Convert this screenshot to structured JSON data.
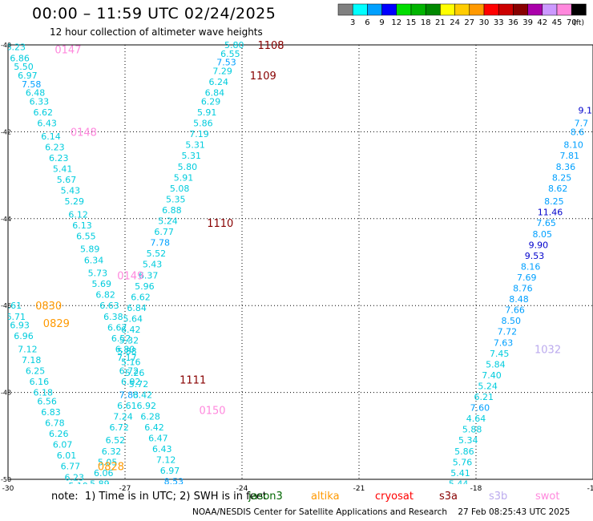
{
  "header": {
    "title": "00:00 – 11:59 UTC 02/24/2025",
    "subtitle": "12 hour collection of altimeter wave heights"
  },
  "legend": {
    "unit": "(ft)",
    "bins": [
      {
        "color": "#808080",
        "label": "3"
      },
      {
        "color": "#00ffff",
        "label": "6"
      },
      {
        "color": "#00a0ff",
        "label": "9"
      },
      {
        "color": "#0000ff",
        "label": "12"
      },
      {
        "color": "#00dd00",
        "label": "15"
      },
      {
        "color": "#00b400",
        "label": "18"
      },
      {
        "color": "#008800",
        "label": "21"
      },
      {
        "color": "#ffff00",
        "label": "24"
      },
      {
        "color": "#ffcc00",
        "label": "27"
      },
      {
        "color": "#ff9900",
        "label": "30"
      },
      {
        "color": "#ff0000",
        "label": "33"
      },
      {
        "color": "#cc0000",
        "label": "36"
      },
      {
        "color": "#880000",
        "label": "39"
      },
      {
        "color": "#aa00aa",
        "label": "42"
      },
      {
        "color": "#cc99ff",
        "label": "45"
      },
      {
        "color": "#ff88dd",
        "label": "70"
      },
      {
        "color": "#000000",
        "label": ""
      }
    ]
  },
  "footer": {
    "note": "note:  1) Time is in UTC; 2) SWH is in feet",
    "credit": "NOAA/NESDIS Center for Satellite Applications and Research    27 Feb 08:25:43 UTC 2025",
    "satellites": [
      {
        "name": "jason3",
        "color": "#006600"
      },
      {
        "name": "altika",
        "color": "#ff9900"
      },
      {
        "name": "cryosat",
        "color": "#ff0000"
      },
      {
        "name": "s3a",
        "color": "#880000"
      },
      {
        "name": "s3b",
        "color": "#bbaaee"
      },
      {
        "name": "swot",
        "color": "#ff88dd"
      }
    ]
  },
  "chart_data": {
    "type": "scatter",
    "xlim": [
      -30,
      -15
    ],
    "ylim": [
      -50,
      -40
    ],
    "xticks": [
      "-30",
      "-27",
      "-24",
      "-21",
      "-18",
      "-15"
    ],
    "yticks": [
      "-40",
      "-42",
      "-44",
      "-46",
      "-48",
      "-50"
    ],
    "grid": true,
    "time_labels": [
      {
        "text": "0147",
        "x": -28.8,
        "y": -40.1,
        "color": "#ff88dd"
      },
      {
        "text": "0148",
        "x": -28.4,
        "y": -42.0,
        "color": "#ff88dd"
      },
      {
        "text": "0149",
        "x": -27.2,
        "y": -45.3,
        "color": "#ff88dd"
      },
      {
        "text": "0150",
        "x": -25.1,
        "y": -48.4,
        "color": "#ff88dd"
      },
      {
        "text": "0830",
        "x": -29.3,
        "y": -46.0,
        "color": "#ff9900"
      },
      {
        "text": "0829",
        "x": -29.1,
        "y": -46.4,
        "color": "#ff9900"
      },
      {
        "text": "0828",
        "x": -27.7,
        "y": -49.7,
        "color": "#ff9900"
      },
      {
        "text": "1108",
        "x": -23.6,
        "y": -40.0,
        "color": "#880000"
      },
      {
        "text": "1109",
        "x": -23.8,
        "y": -40.7,
        "color": "#880000"
      },
      {
        "text": "1110",
        "x": -24.9,
        "y": -44.1,
        "color": "#880000"
      },
      {
        "text": "1111",
        "x": -25.6,
        "y": -47.7,
        "color": "#880000"
      },
      {
        "text": "1032",
        "x": -16.5,
        "y": -47.0,
        "color": "#bbaaee"
      }
    ],
    "series": [
      {
        "name": "swot",
        "points": [
          {
            "x": -29.8,
            "y": -40.05,
            "v": "6.23"
          },
          {
            "x": -29.7,
            "y": -40.3,
            "v": "6.86"
          },
          {
            "x": -29.6,
            "y": -40.5,
            "v": "5.50"
          },
          {
            "x": -29.5,
            "y": -40.7,
            "v": "6.97"
          },
          {
            "x": -29.4,
            "y": -40.9,
            "v": "7.58"
          },
          {
            "x": -29.3,
            "y": -41.1,
            "v": "6.48"
          },
          {
            "x": -29.2,
            "y": -41.3,
            "v": "6.33"
          },
          {
            "x": -29.1,
            "y": -41.55,
            "v": "6.62"
          },
          {
            "x": -29.0,
            "y": -41.8,
            "v": "6.43"
          },
          {
            "x": -28.9,
            "y": -42.1,
            "v": "6.14"
          },
          {
            "x": -28.8,
            "y": -42.35,
            "v": "6.23"
          },
          {
            "x": -28.7,
            "y": -42.6,
            "v": "6.23"
          },
          {
            "x": -28.6,
            "y": -42.85,
            "v": "5.41"
          },
          {
            "x": -28.5,
            "y": -43.1,
            "v": "5.67"
          },
          {
            "x": -28.4,
            "y": -43.35,
            "v": "5.43"
          },
          {
            "x": -28.3,
            "y": -43.6,
            "v": "5.29"
          },
          {
            "x": -28.2,
            "y": -43.9,
            "v": "6.12"
          },
          {
            "x": -28.1,
            "y": -44.15,
            "v": "6.13"
          },
          {
            "x": -28.0,
            "y": -44.4,
            "v": "6.55"
          },
          {
            "x": -27.9,
            "y": -44.7,
            "v": "5.89"
          },
          {
            "x": -27.8,
            "y": -44.95,
            "v": "6.34"
          },
          {
            "x": -27.7,
            "y": -45.25,
            "v": "5.73"
          },
          {
            "x": -27.6,
            "y": -45.5,
            "v": "5.69"
          },
          {
            "x": -27.5,
            "y": -45.75,
            "v": "6.82"
          },
          {
            "x": -27.4,
            "y": -46.0,
            "v": "6.63"
          },
          {
            "x": -27.3,
            "y": -46.25,
            "v": "6.38"
          },
          {
            "x": -27.2,
            "y": -46.5,
            "v": "6.67"
          },
          {
            "x": -27.1,
            "y": -46.75,
            "v": "6.52"
          },
          {
            "x": -27.0,
            "y": -47.0,
            "v": "6.80"
          },
          {
            "x": -26.95,
            "y": -47.2,
            "v": "7.17"
          },
          {
            "x": -26.9,
            "y": -47.5,
            "v": "6.72"
          },
          {
            "x": -26.85,
            "y": -47.75,
            "v": "6.92"
          },
          {
            "x": -26.9,
            "y": -48.05,
            "v": "7.83"
          },
          {
            "x": -26.95,
            "y": -48.3,
            "v": "6.61"
          },
          {
            "x": -27.05,
            "y": -48.55,
            "v": "7.24"
          },
          {
            "x": -27.15,
            "y": -48.8,
            "v": "6.72"
          },
          {
            "x": -27.25,
            "y": -49.1,
            "v": "6.52"
          },
          {
            "x": -27.35,
            "y": -49.35,
            "v": "6.32"
          },
          {
            "x": -27.45,
            "y": -49.6,
            "v": "5.05"
          },
          {
            "x": -27.55,
            "y": -49.85,
            "v": "6.06"
          },
          {
            "x": -27.65,
            "y": -50.1,
            "v": "5.89"
          }
        ]
      },
      {
        "name": "altika",
        "points": [
          {
            "x": -29.9,
            "y": -46.0,
            "v": "6.61"
          },
          {
            "x": -29.8,
            "y": -46.25,
            "v": "6.71"
          },
          {
            "x": -29.7,
            "y": -46.45,
            "v": "6.93"
          },
          {
            "x": -29.6,
            "y": -46.7,
            "v": "6.96"
          },
          {
            "x": -29.5,
            "y": -47.0,
            "v": "7.12"
          },
          {
            "x": -29.4,
            "y": -47.25,
            "v": "7.18"
          },
          {
            "x": -29.3,
            "y": -47.5,
            "v": "6.25"
          },
          {
            "x": -29.2,
            "y": -47.75,
            "v": "6.16"
          },
          {
            "x": -29.1,
            "y": -48.0,
            "v": "6.18"
          },
          {
            "x": -29.0,
            "y": -48.2,
            "v": "6.56"
          },
          {
            "x": -28.9,
            "y": -48.45,
            "v": "6.83"
          },
          {
            "x": -28.8,
            "y": -48.7,
            "v": "6.78"
          },
          {
            "x": -28.7,
            "y": -48.95,
            "v": "6.26"
          },
          {
            "x": -28.6,
            "y": -49.2,
            "v": "6.07"
          },
          {
            "x": -28.5,
            "y": -49.45,
            "v": "6.01"
          },
          {
            "x": -28.4,
            "y": -49.7,
            "v": "6.77"
          },
          {
            "x": -28.3,
            "y": -49.95,
            "v": "6.23"
          },
          {
            "x": -28.2,
            "y": -50.15,
            "v": "5.19"
          }
        ]
      },
      {
        "name": "s3a",
        "points": [
          {
            "x": -24.2,
            "y": -40.0,
            "v": "5.80"
          },
          {
            "x": -24.3,
            "y": -40.2,
            "v": "6.55"
          },
          {
            "x": -24.4,
            "y": -40.4,
            "v": "7.53"
          },
          {
            "x": -24.5,
            "y": -40.6,
            "v": "7.29"
          },
          {
            "x": -24.6,
            "y": -40.85,
            "v": "6.24"
          },
          {
            "x": -24.7,
            "y": -41.1,
            "v": "6.84"
          },
          {
            "x": -24.8,
            "y": -41.3,
            "v": "6.29"
          },
          {
            "x": -24.9,
            "y": -41.55,
            "v": "5.91"
          },
          {
            "x": -25.0,
            "y": -41.8,
            "v": "5.86"
          },
          {
            "x": -25.1,
            "y": -42.05,
            "v": "7.19"
          },
          {
            "x": -25.2,
            "y": -42.3,
            "v": "5.31"
          },
          {
            "x": -25.3,
            "y": -42.55,
            "v": "5.31"
          },
          {
            "x": -25.4,
            "y": -42.8,
            "v": "5.80"
          },
          {
            "x": -25.5,
            "y": -43.05,
            "v": "5.91"
          },
          {
            "x": -25.6,
            "y": -43.3,
            "v": "5.08"
          },
          {
            "x": -25.7,
            "y": -43.55,
            "v": "5.35"
          },
          {
            "x": -25.8,
            "y": -43.8,
            "v": "6.88"
          },
          {
            "x": -25.9,
            "y": -44.05,
            "v": "5.24"
          },
          {
            "x": -26.0,
            "y": -44.3,
            "v": "6.77"
          },
          {
            "x": -26.1,
            "y": -44.55,
            "v": "7.78"
          },
          {
            "x": -26.2,
            "y": -44.8,
            "v": "5.52"
          },
          {
            "x": -26.3,
            "y": -45.05,
            "v": "5.43"
          },
          {
            "x": -26.4,
            "y": -45.3,
            "v": "6.37"
          },
          {
            "x": -26.5,
            "y": -45.55,
            "v": "5.96"
          },
          {
            "x": -26.6,
            "y": -45.8,
            "v": "6.62"
          },
          {
            "x": -26.7,
            "y": -46.05,
            "v": "6.84"
          },
          {
            "x": -26.8,
            "y": -46.3,
            "v": "5.64"
          },
          {
            "x": -26.85,
            "y": -46.55,
            "v": "6.42"
          },
          {
            "x": -26.9,
            "y": -46.8,
            "v": "5.32"
          },
          {
            "x": -26.95,
            "y": -47.05,
            "v": "5.88"
          },
          {
            "x": -26.85,
            "y": -47.3,
            "v": "5.16"
          },
          {
            "x": -26.75,
            "y": -47.55,
            "v": "5.26"
          },
          {
            "x": -26.65,
            "y": -47.8,
            "v": "5.72"
          },
          {
            "x": -26.55,
            "y": -48.05,
            "v": "6.42"
          },
          {
            "x": -26.45,
            "y": -48.3,
            "v": "6.92"
          },
          {
            "x": -26.35,
            "y": -48.55,
            "v": "6.28"
          },
          {
            "x": -26.25,
            "y": -48.8,
            "v": "6.42"
          },
          {
            "x": -26.15,
            "y": -49.05,
            "v": "6.47"
          },
          {
            "x": -26.05,
            "y": -49.3,
            "v": "6.43"
          },
          {
            "x": -25.95,
            "y": -49.55,
            "v": "7.12"
          },
          {
            "x": -25.85,
            "y": -49.8,
            "v": "6.97"
          },
          {
            "x": -25.75,
            "y": -50.05,
            "v": "8.53"
          },
          {
            "x": -25.65,
            "y": -50.3,
            "v": "7.59"
          }
        ]
      },
      {
        "name": "s3b",
        "points": [
          {
            "x": -15.2,
            "y": -41.5,
            "v": "9.1"
          },
          {
            "x": -15.3,
            "y": -41.8,
            "v": "7.7"
          },
          {
            "x": -15.4,
            "y": -42.0,
            "v": "8.6"
          },
          {
            "x": -15.5,
            "y": -42.3,
            "v": "8.10"
          },
          {
            "x": -15.6,
            "y": -42.55,
            "v": "7.81"
          },
          {
            "x": -15.7,
            "y": -42.8,
            "v": "8.36"
          },
          {
            "x": -15.8,
            "y": -43.05,
            "v": "8.25"
          },
          {
            "x": -15.9,
            "y": -43.3,
            "v": "8.62"
          },
          {
            "x": -16.0,
            "y": -43.6,
            "v": "8.25"
          },
          {
            "x": -16.1,
            "y": -43.85,
            "v": "11.46"
          },
          {
            "x": -16.2,
            "y": -44.1,
            "v": "7.65"
          },
          {
            "x": -16.3,
            "y": -44.35,
            "v": "8.05"
          },
          {
            "x": -16.4,
            "y": -44.6,
            "v": "9.90"
          },
          {
            "x": -16.5,
            "y": -44.85,
            "v": "9.53"
          },
          {
            "x": -16.6,
            "y": -45.1,
            "v": "8.16"
          },
          {
            "x": -16.7,
            "y": -45.35,
            "v": "7.69"
          },
          {
            "x": -16.8,
            "y": -45.6,
            "v": "8.76"
          },
          {
            "x": -16.9,
            "y": -45.85,
            "v": "8.48"
          },
          {
            "x": -17.0,
            "y": -46.1,
            "v": "7.66"
          },
          {
            "x": -17.1,
            "y": -46.35,
            "v": "8.50"
          },
          {
            "x": -17.2,
            "y": -46.6,
            "v": "7.72"
          },
          {
            "x": -17.3,
            "y": -46.85,
            "v": "7.63"
          },
          {
            "x": -17.4,
            "y": -47.1,
            "v": "7.45"
          },
          {
            "x": -17.5,
            "y": -47.35,
            "v": "5.84"
          },
          {
            "x": -17.6,
            "y": -47.6,
            "v": "7.40"
          },
          {
            "x": -17.7,
            "y": -47.85,
            "v": "5.24"
          },
          {
            "x": -17.8,
            "y": -48.1,
            "v": "6.21"
          },
          {
            "x": -17.9,
            "y": -48.35,
            "v": "7.60"
          },
          {
            "x": -18.0,
            "y": -48.6,
            "v": "4.64"
          },
          {
            "x": -18.1,
            "y": -48.85,
            "v": "5.88"
          },
          {
            "x": -18.2,
            "y": -49.1,
            "v": "5.34"
          },
          {
            "x": -18.3,
            "y": -49.35,
            "v": "5.86"
          },
          {
            "x": -18.35,
            "y": -49.6,
            "v": "5.76"
          },
          {
            "x": -18.4,
            "y": -49.85,
            "v": "5.41"
          },
          {
            "x": -18.45,
            "y": -50.1,
            "v": "5.44"
          },
          {
            "x": -18.5,
            "y": -50.35,
            "v": "5.46"
          },
          {
            "x": -18.55,
            "y": -50.6,
            "v": "4.57"
          }
        ]
      }
    ]
  }
}
